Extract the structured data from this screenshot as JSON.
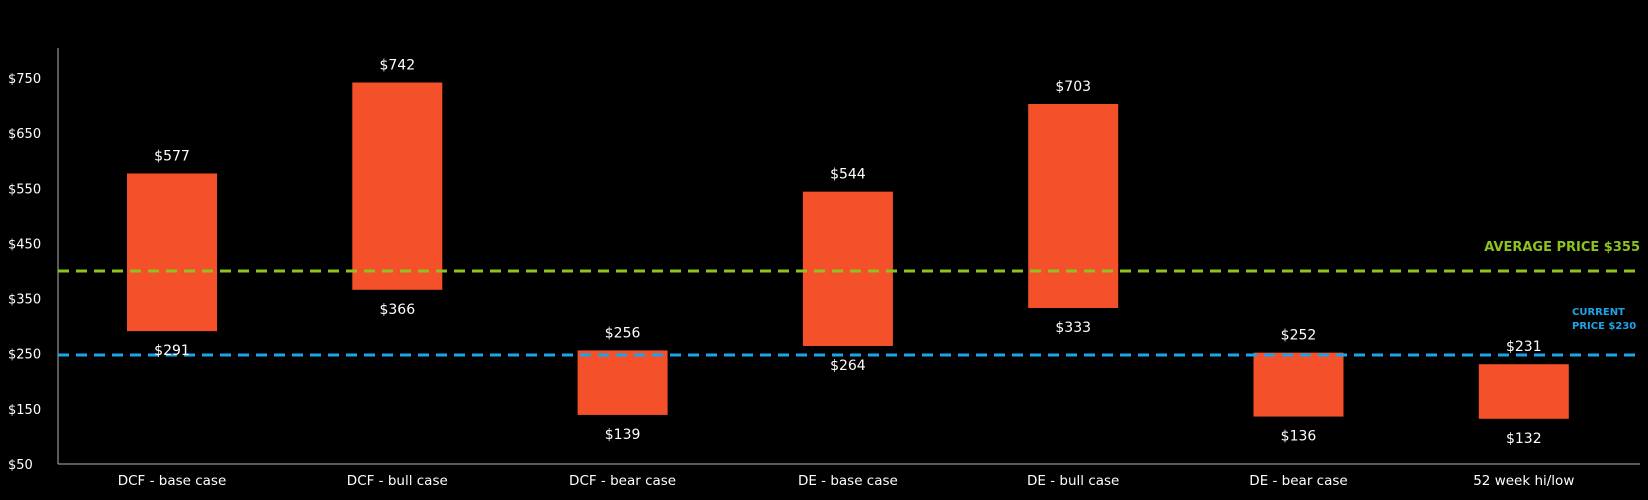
{
  "chart_data": {
    "type": "bar",
    "subtype": "floating-range",
    "categories": [
      "DCF - base case",
      "DCF - bull case",
      "DCF - bear case",
      "DE - base case",
      "DE - bull case",
      "DE - bear case",
      "52 week hi/low"
    ],
    "low": [
      291,
      366,
      139,
      264,
      333,
      136,
      132
    ],
    "high": [
      577,
      742,
      256,
      544,
      703,
      252,
      231
    ],
    "high_labels": [
      "$577",
      "$742",
      "$256",
      "$544",
      "$703",
      "$252",
      "$231"
    ],
    "low_labels": [
      "$291",
      "$366",
      "$139",
      "$264",
      "$333",
      "$136",
      "$132"
    ],
    "ylim": [
      50,
      800
    ],
    "yticks": [
      50,
      150,
      250,
      350,
      450,
      550,
      650,
      750
    ],
    "ytick_labels": [
      "$50",
      "$150",
      "$250",
      "$350",
      "$450",
      "$550",
      "$650",
      "$750"
    ],
    "grid": false,
    "bar_color": "#f4502a",
    "reference_lines": [
      {
        "label": "AVERAGE PRICE $355",
        "value": 355,
        "color": "#8dc21f",
        "style": "dashed"
      },
      {
        "label_lines": [
          "CURRENT",
          "PRICE $230"
        ],
        "value": 230,
        "color": "#1fa3e8",
        "style": "dashed"
      }
    ]
  }
}
